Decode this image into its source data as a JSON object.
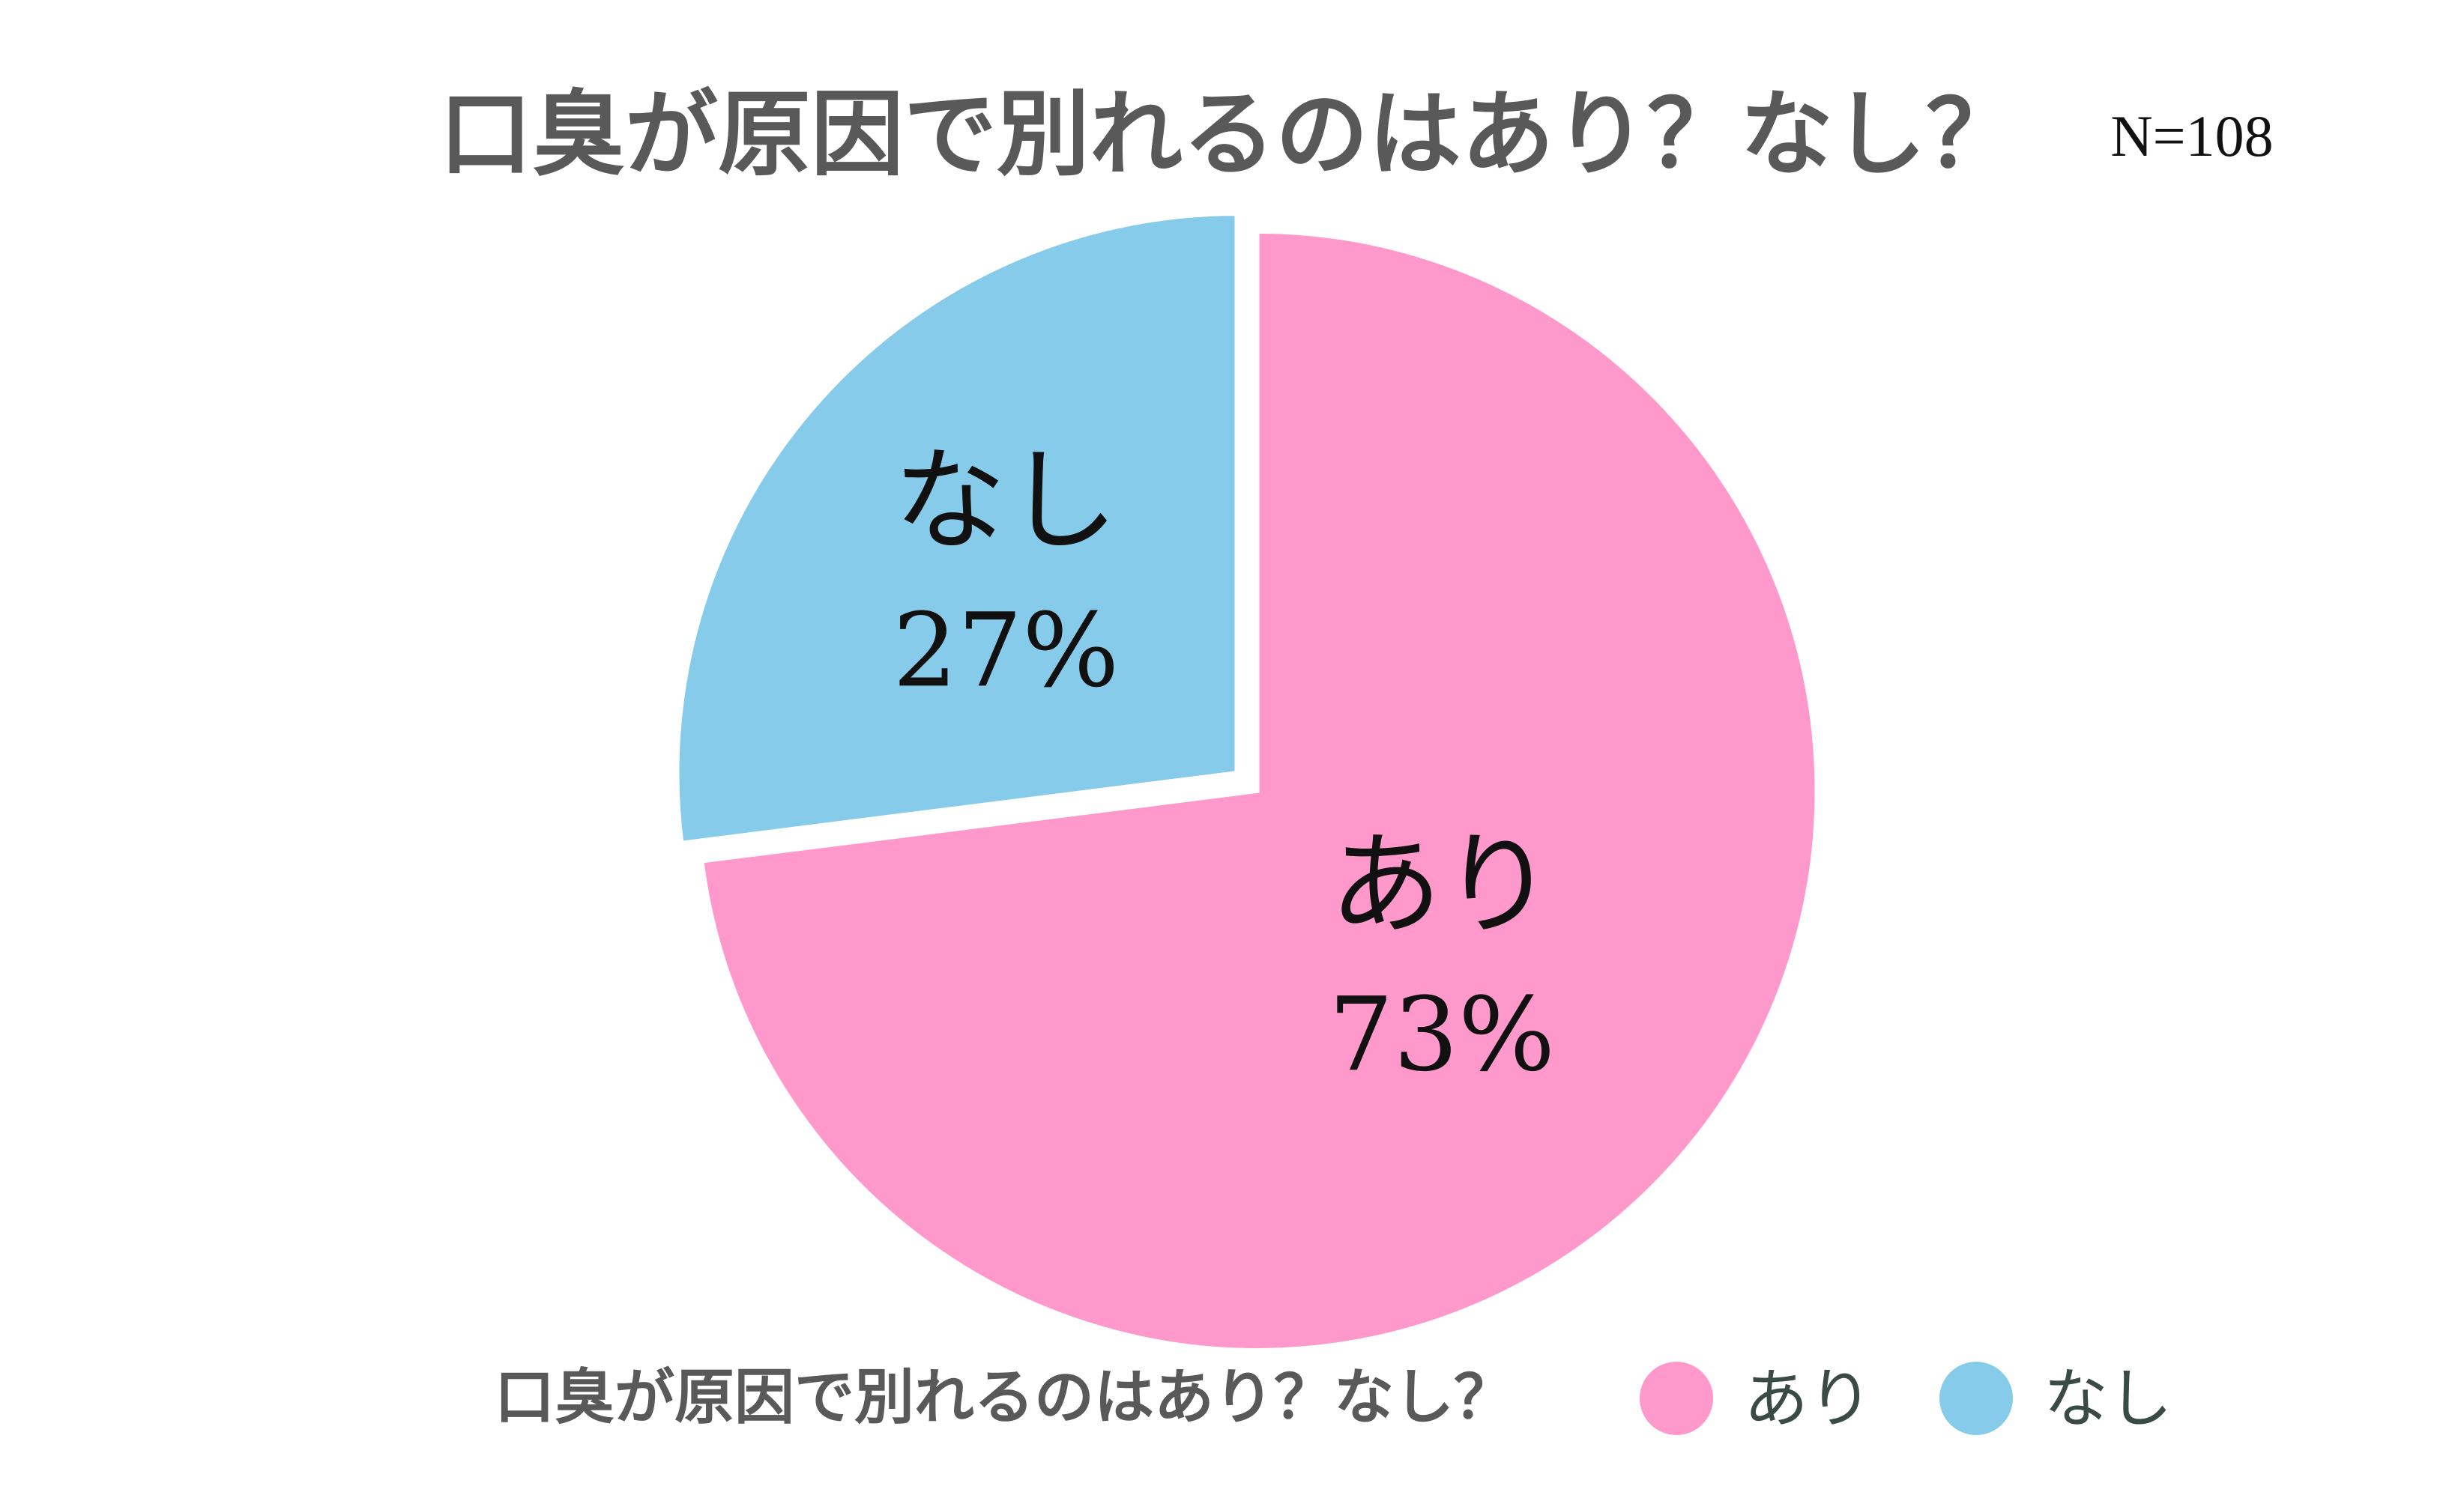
{
  "chart_data": {
    "type": "pie",
    "title": "口臭が原因で別れるのはありなし",
    "title_display": "口臭が原因で別れるのはあり？なし？",
    "sample_size": "N=108",
    "legend_title": "口臭が原因で別れるのはあり？なし？",
    "legend_position": "bottom",
    "slices": [
      {
        "label": "あり",
        "value": 73,
        "value_label": "73%",
        "color": "#ff99cc"
      },
      {
        "label": "なし",
        "value": 27,
        "value_label": "27%",
        "color": "#87cbea"
      }
    ]
  }
}
